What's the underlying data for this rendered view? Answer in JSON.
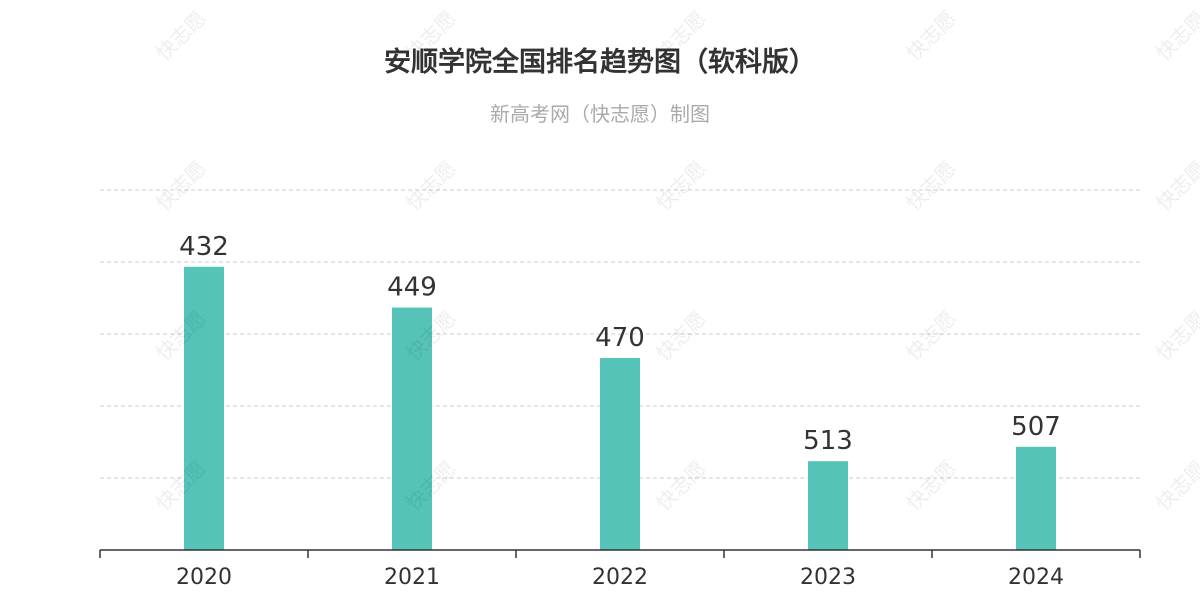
{
  "title": "安顺学院全国排名趋势图（软科版）",
  "subtitle": "新高考网（快志愿）制图",
  "watermark": "快志愿",
  "colors": {
    "bar": "#55c3b8",
    "grid": "#cccccc",
    "axis": "#333333",
    "label": "#333333"
  },
  "chart_data": {
    "type": "bar",
    "title": "安顺学院全国排名趋势图（软科版）",
    "subtitle": "新高考网（快志愿）制图",
    "categories": [
      "2020",
      "2021",
      "2022",
      "2023",
      "2024"
    ],
    "values": [
      432,
      449,
      470,
      513,
      507
    ],
    "xlabel": "",
    "ylabel": "",
    "y_axis_inverted": true,
    "ylim": [
      400,
      550
    ],
    "grid": true,
    "legend": "none"
  }
}
